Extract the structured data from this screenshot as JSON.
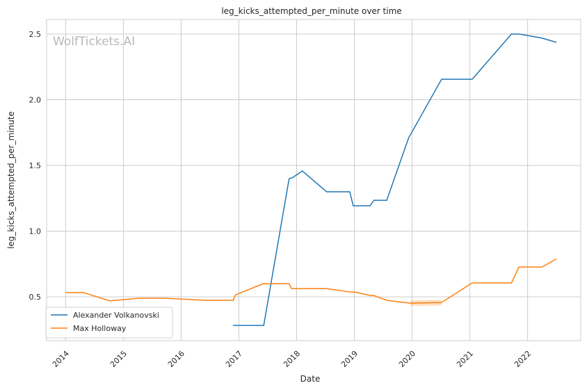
{
  "chart_data": {
    "type": "line",
    "title": "leg_kicks_attempted_per_minute over time",
    "xlabel": "Date",
    "ylabel": "leg_kicks_attempted_per_minute",
    "xlim": [
      2013.67,
      2022.92
    ],
    "ylim": [
      0.167,
      2.611
    ],
    "xticks": [
      "2014",
      "2015",
      "2016",
      "2017",
      "2018",
      "2019",
      "2020",
      "2021",
      "2022"
    ],
    "yticks": [
      "0.5",
      "1.0",
      "1.5",
      "2.0",
      "2.5"
    ],
    "grid": true,
    "legend_position": "bottom-left",
    "watermark": "WolfTickets.AI",
    "series": [
      {
        "name": "Alexander Volkanovski",
        "color": "#1f77b4",
        "x": [
          2016.9,
          2017.43,
          2017.87,
          2017.92,
          2018.1,
          2018.52,
          2018.92,
          2018.98,
          2019.27,
          2019.34,
          2019.56,
          2019.94,
          2020.51,
          2021.04,
          2021.72,
          2021.86,
          2022.24,
          2022.5
        ],
        "y": [
          0.283,
          0.283,
          1.4,
          1.405,
          1.458,
          1.3,
          1.3,
          1.193,
          1.193,
          1.235,
          1.235,
          1.71,
          2.156,
          2.156,
          2.5,
          2.5,
          2.47,
          2.437
        ]
      },
      {
        "name": "Max Holloway",
        "color": "#ff7f0e",
        "x": [
          2014.0,
          2014.31,
          2014.76,
          2015.28,
          2015.7,
          2016.42,
          2016.9,
          2016.94,
          2017.42,
          2017.87,
          2017.91,
          2018.52,
          2018.92,
          2019.0,
          2019.28,
          2019.34,
          2019.56,
          2019.97,
          2020.51,
          2021.04,
          2021.72,
          2021.85,
          2022.25,
          2022.5
        ],
        "y": [
          0.533,
          0.533,
          0.47,
          0.49,
          0.49,
          0.474,
          0.474,
          0.515,
          0.6,
          0.6,
          0.563,
          0.563,
          0.537,
          0.537,
          0.51,
          0.51,
          0.474,
          0.452,
          0.457,
          0.606,
          0.606,
          0.727,
          0.727,
          0.79
        ],
        "ci_band": {
          "x": [
            2019.94,
            2020.51
          ],
          "half_width": 0.022
        }
      }
    ]
  }
}
